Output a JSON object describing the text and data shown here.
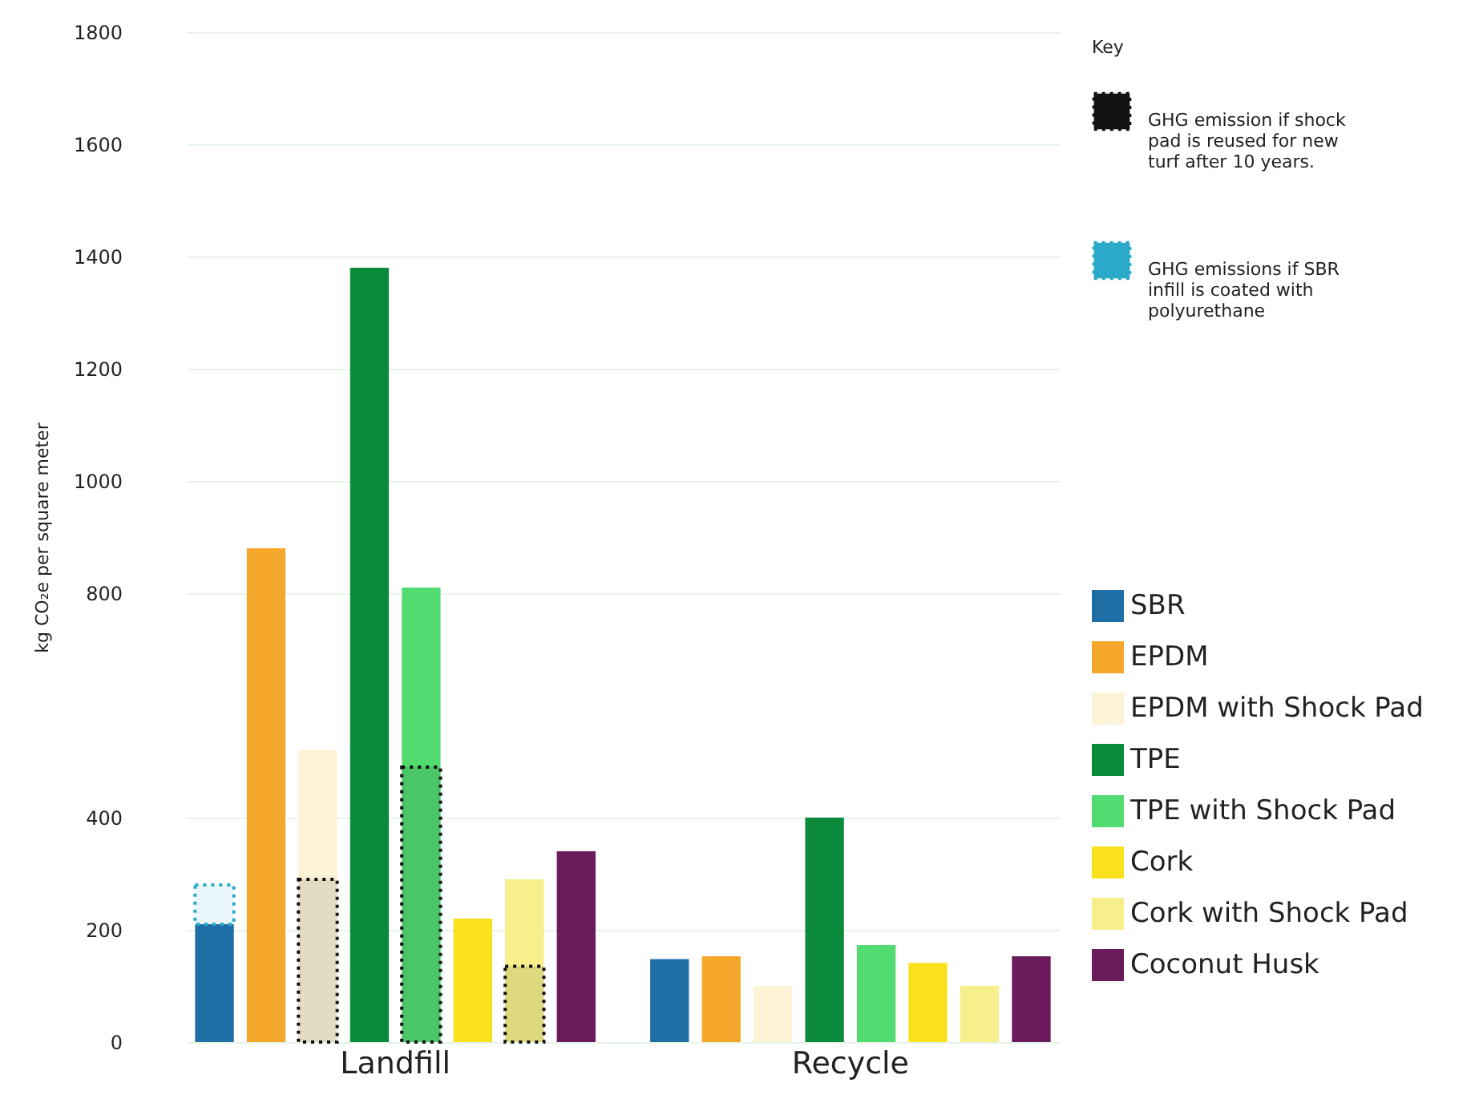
{
  "chart_data": {
    "type": "bar",
    "ylabel": "kg CO₂e per square meter",
    "categories": [
      "Landfill",
      "Recycle"
    ],
    "series": [
      {
        "name": "SBR",
        "color": "#1f6fa6",
        "values": [
          210,
          148
        ]
      },
      {
        "name": "EPDM",
        "color": "#f5a72b",
        "values": [
          880,
          153
        ]
      },
      {
        "name": "EPDM with Shock Pad",
        "color": "#fcf3d6",
        "values": [
          520,
          100
        ]
      },
      {
        "name": "TPE",
        "color": "#0b8a3b",
        "values": [
          1380,
          400
        ]
      },
      {
        "name": "TPE with Shock Pad",
        "color": "#52db70",
        "values": [
          810,
          173
        ]
      },
      {
        "name": "Cork",
        "color": "#f9e21c",
        "values": [
          220,
          141
        ]
      },
      {
        "name": "Cork with Shock Pad",
        "color": "#f6ef8c",
        "values": [
          290,
          100
        ]
      },
      {
        "name": "Coconut Husk",
        "color": "#6a1b5b",
        "values": [
          340,
          153
        ]
      },
      {
        "name": "GHG emission if shock pad is reused for new turf after 10 years.",
        "type": "bar",
        "color": "#111111",
        "line_style": "dotted",
        "x": [
          "Landfill",
          "Landfill",
          "Landfill",
          "Landfill",
          "Landfill",
          "Landfill",
          "Landfill",
          "Landfill",
          "Recycle",
          "Recycle",
          "Recycle",
          "Recycle",
          "Recycle",
          "Recycle",
          "Recycle",
          "Recycle"
        ],
        "values": [
          null,
          null,
          290,
          null,
          490,
          null,
          135,
          null,
          null,
          null,
          null,
          null,
          null,
          null,
          null,
          null
        ]
      },
      {
        "name": "GHG emissions if SBR infill is coated with polyurethane",
        "type": "bar",
        "color": "#2aa9c9",
        "line_style": "dotted",
        "x": [
          "Landfill",
          "Landfill",
          "Landfill",
          "Landfill",
          "Landfill",
          "Landfill",
          "Landfill",
          "Landfill",
          "Recycle",
          "Recycle",
          "Recycle",
          "Recycle",
          "Recycle",
          "Recycle",
          "Recycle",
          "Recycle"
        ],
        "base": [
          210,
          null,
          null,
          null,
          null,
          null,
          null,
          null,
          null,
          null,
          null,
          null,
          null,
          null,
          null,
          null
        ],
        "values": [
          70,
          null,
          null,
          null,
          null,
          null,
          null,
          null,
          null,
          null,
          null,
          null,
          null,
          null,
          null,
          null
        ]
      }
    ],
    "ylim": [
      0,
      1800
    ],
    "yticks": [
      0,
      200,
      400,
      800,
      1000,
      1200,
      1400,
      1600,
      1800
    ],
    "grid": "y",
    "legend": "right",
    "annotations": [
      "Key"
    ]
  }
}
